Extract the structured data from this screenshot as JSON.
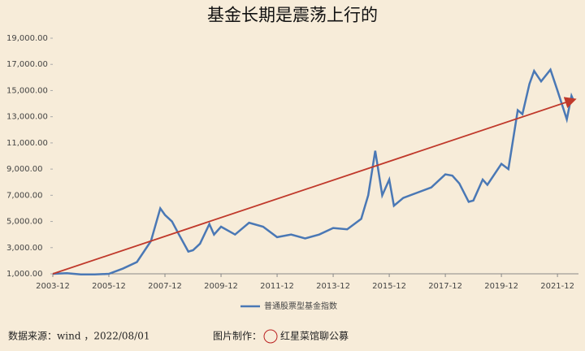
{
  "chart_data": {
    "type": "line",
    "title": "基金长期是震荡上行的",
    "x": [
      "2003-12",
      "2004-06",
      "2004-12",
      "2005-06",
      "2005-12",
      "2006-06",
      "2006-12",
      "2007-06",
      "2007-10",
      "2007-12",
      "2008-03",
      "2008-06",
      "2008-10",
      "2008-12",
      "2009-03",
      "2009-07",
      "2009-09",
      "2009-12",
      "2010-06",
      "2010-12",
      "2011-06",
      "2011-12",
      "2012-06",
      "2012-12",
      "2013-06",
      "2013-12",
      "2014-06",
      "2014-12",
      "2015-03",
      "2015-06",
      "2015-09",
      "2015-12",
      "2016-02",
      "2016-06",
      "2016-12",
      "2017-06",
      "2017-12",
      "2018-03",
      "2018-06",
      "2018-10",
      "2018-12",
      "2019-04",
      "2019-06",
      "2019-12",
      "2020-03",
      "2020-07",
      "2020-09",
      "2020-12",
      "2021-02",
      "2021-05",
      "2021-09",
      "2021-12",
      "2022-04",
      "2022-06",
      "2022-07"
    ],
    "series": [
      {
        "name": "普通股票型基金指数",
        "color": "#4a78b5",
        "values": [
          1000,
          1050,
          950,
          950,
          1000,
          1400,
          1900,
          3500,
          6000,
          5500,
          5000,
          4000,
          2700,
          2800,
          3300,
          4800,
          4000,
          4600,
          4000,
          4900,
          4600,
          3800,
          4000,
          3700,
          4000,
          4500,
          4400,
          5200,
          7000,
          10400,
          7000,
          8200,
          6200,
          6800,
          7200,
          7600,
          8600,
          8500,
          7900,
          6500,
          6600,
          8200,
          7800,
          9400,
          9000,
          13500,
          13200,
          15500,
          16500,
          15700,
          16600,
          15000,
          12800,
          14600,
          14200
        ]
      }
    ],
    "trend": {
      "x": [
        "2003-12",
        "2022-07"
      ],
      "values": [
        1000,
        14300
      ],
      "color": "#c0392b"
    },
    "xlim": [
      "2003-12",
      "2022-09"
    ],
    "xticks": [
      "2003-12",
      "2005-12",
      "2007-12",
      "2009-12",
      "2011-12",
      "2013-12",
      "2015-12",
      "2017-12",
      "2019-12",
      "2021-12"
    ],
    "ylim": [
      1000,
      19000
    ],
    "yticks": [
      {
        "value": 1000,
        "label": "1,000.00"
      },
      {
        "value": 3000,
        "label": "3,000.00"
      },
      {
        "value": 5000,
        "label": "5,000.00"
      },
      {
        "value": 7000,
        "label": "7,000.00"
      },
      {
        "value": 9000,
        "label": "9,000.00"
      },
      {
        "value": 11000,
        "label": "11,000.00"
      },
      {
        "value": 13000,
        "label": "13,000.00"
      },
      {
        "value": 15000,
        "label": "15,000.00"
      },
      {
        "value": 17000,
        "label": "17,000.00"
      },
      {
        "value": 19000,
        "label": "19,000.00"
      }
    ],
    "source": "数据来源：wind ，2022/08/01",
    "maker": "图片制作：",
    "maker_name": "红星菜馆聊公募"
  }
}
